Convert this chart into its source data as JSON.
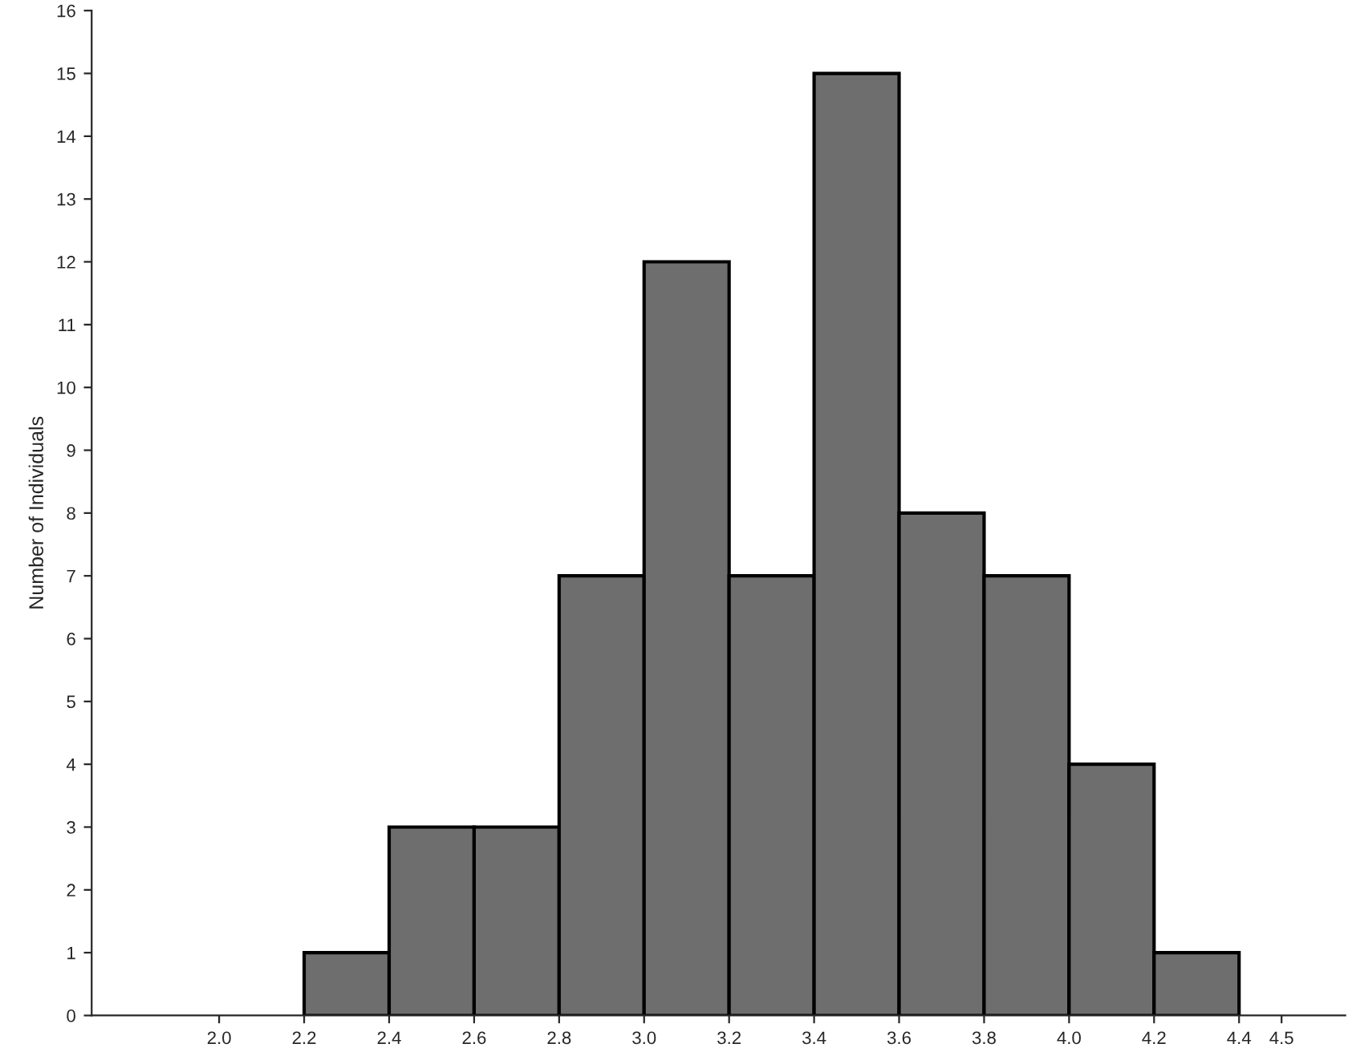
{
  "chart_data": {
    "type": "histogram",
    "ylabel": "Number of Individuals",
    "bins": [
      2.2,
      2.4,
      2.6,
      2.8,
      3.0,
      3.2,
      3.4,
      3.6,
      3.8,
      4.0,
      4.2,
      4.4
    ],
    "values": [
      1,
      3,
      3,
      7,
      12,
      7,
      15,
      8,
      7,
      4,
      1
    ],
    "color": "#6e6e6e",
    "xlim": [
      1.7,
      4.65
    ],
    "xticks": [
      {
        "value": 2,
        "label": "2.0"
      },
      2.2,
      2.4,
      2.6,
      2.8,
      {
        "value": 3,
        "label": "3.0"
      },
      3.2,
      3.4,
      3.6,
      3.8,
      {
        "value": 4,
        "label": "4.0"
      },
      4.2,
      4.4,
      4.5
    ],
    "ylim": [
      0,
      16
    ],
    "yticks": [
      0,
      1,
      2,
      3,
      4,
      5,
      6,
      7,
      8,
      9,
      10,
      11,
      12,
      13,
      14,
      15,
      16
    ],
    "grid": false
  }
}
